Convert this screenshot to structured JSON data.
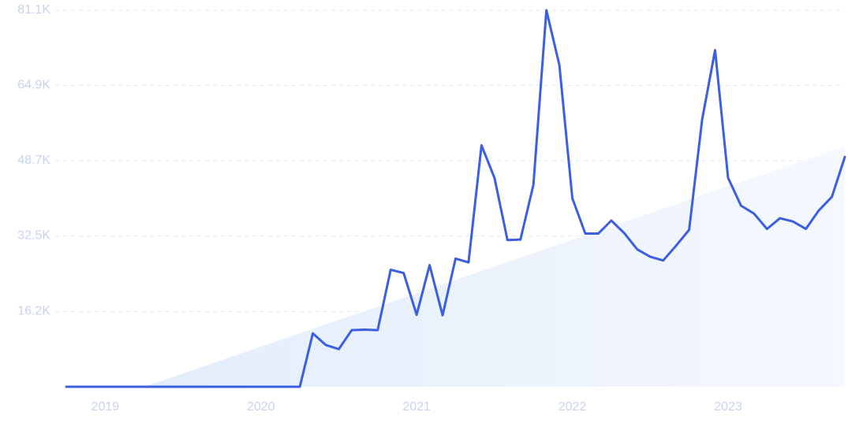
{
  "chart_data": {
    "type": "line",
    "title": "",
    "xlabel": "",
    "ylabel": "",
    "ylim": [
      0,
      81100
    ],
    "xlim": [
      "2018-10",
      "2023-10"
    ],
    "grid": true,
    "legend": "none",
    "y_ticks": [
      "16.2K",
      "32.5K",
      "48.7K",
      "64.9K",
      "81.1K"
    ],
    "y_tick_values": [
      16200,
      32500,
      48700,
      64900,
      81100
    ],
    "x_ticks": [
      "2019",
      "2020",
      "2021",
      "2022",
      "2023"
    ],
    "x_tick_dates": [
      "2019-01",
      "2020-01",
      "2021-01",
      "2022-01",
      "2023-01"
    ],
    "series": [
      {
        "color": "#3b5fe0",
        "x": [
          "2018-10",
          "2018-11",
          "2018-12",
          "2019-01",
          "2019-02",
          "2019-03",
          "2019-04",
          "2019-05",
          "2019-06",
          "2019-07",
          "2019-08",
          "2019-09",
          "2019-10",
          "2019-11",
          "2019-12",
          "2020-01",
          "2020-02",
          "2020-03",
          "2020-04",
          "2020-05",
          "2020-06",
          "2020-07",
          "2020-08",
          "2020-09",
          "2020-10",
          "2020-11",
          "2020-12",
          "2021-01",
          "2021-02",
          "2021-03",
          "2021-04",
          "2021-05",
          "2021-06",
          "2021-07",
          "2021-08",
          "2021-09",
          "2021-10",
          "2021-11",
          "2021-12",
          "2022-01",
          "2022-02",
          "2022-03",
          "2022-04",
          "2022-05",
          "2022-06",
          "2022-07",
          "2022-08",
          "2022-09",
          "2022-10",
          "2022-11",
          "2022-12",
          "2023-01",
          "2023-02",
          "2023-03",
          "2023-04",
          "2023-05",
          "2023-06",
          "2023-07",
          "2023-08",
          "2023-09",
          "2023-10"
        ],
        "values": [
          0,
          0,
          0,
          0,
          0,
          0,
          0,
          0,
          0,
          0,
          0,
          0,
          0,
          0,
          0,
          0,
          0,
          0,
          0,
          11500,
          9000,
          8100,
          12200,
          12300,
          12200,
          25200,
          24500,
          15500,
          26200,
          15400,
          27600,
          26800,
          52000,
          45000,
          31600,
          31700,
          43500,
          81100,
          69300,
          40600,
          33000,
          33000,
          35800,
          33100,
          29600,
          28000,
          27200,
          30400,
          33800,
          57500,
          72500,
          45000,
          39000,
          37300,
          34000,
          36300,
          35600,
          34000,
          38000,
          40900,
          49500
        ]
      },
      {
        "color": "#e9f0fc",
        "type": "area",
        "x": [
          "2019-04",
          "2023-10"
        ],
        "values": [
          0,
          51800
        ]
      }
    ]
  }
}
